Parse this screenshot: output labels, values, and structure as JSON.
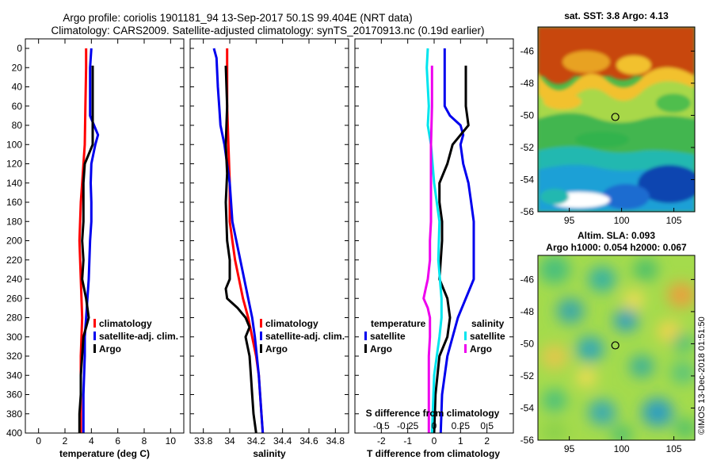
{
  "header": {
    "line1": "Argo profile: coriolis 1901181_94 13-Sep-2017 50.1S 99.404E (NRT data)",
    "line2": "Climatology: CARS2009. Satellite-adjusted climatology: synTS_20170913.nc (0.19d earlier)"
  },
  "colors": {
    "climatology": "#ff0000",
    "satellite_clim": "#0000ee",
    "argo": "#000000",
    "sat_T_diff": "#0000ee",
    "sat_S_diff": "#00e5ee",
    "argo_S_diff": "#ee00ee"
  },
  "chart_data": [
    {
      "type": "line",
      "name": "temperature",
      "xlabel": "temperature (deg C)",
      "xlim": [
        -1,
        11
      ],
      "ylim": [
        400,
        0
      ],
      "xticks": [
        "0",
        "2",
        "4",
        "6",
        "8",
        "10"
      ],
      "yticks": [
        "0",
        "20",
        "40",
        "60",
        "80",
        "100",
        "120",
        "140",
        "160",
        "180",
        "200",
        "220",
        "240",
        "260",
        "280",
        "300",
        "320",
        "340",
        "360",
        "380",
        "400"
      ],
      "legend": [
        "climatology",
        "satellite-adj. clim.",
        "Argo"
      ],
      "series": [
        {
          "name": "climatology",
          "depth": [
            0,
            20,
            60,
            100,
            140,
            160,
            200,
            240,
            280,
            320,
            360,
            400
          ],
          "values": [
            3.6,
            3.6,
            3.55,
            3.5,
            3.3,
            3.2,
            3.1,
            3.2,
            3.3,
            3.2,
            3.2,
            3.2
          ]
        },
        {
          "name": "satellite-adj. clim.",
          "depth": [
            0,
            20,
            40,
            60,
            70,
            80,
            90,
            100,
            120,
            140,
            160,
            180,
            200,
            240,
            280,
            300,
            320,
            360,
            400
          ],
          "values": [
            4.0,
            3.9,
            3.9,
            3.9,
            3.9,
            4.2,
            4.5,
            4.3,
            4.0,
            3.95,
            4.0,
            4.0,
            3.9,
            3.8,
            3.6,
            3.5,
            3.5,
            3.4,
            3.4
          ]
        },
        {
          "name": "Argo",
          "depth": [
            18,
            40,
            60,
            80,
            100,
            110,
            120,
            140,
            160,
            180,
            200,
            220,
            240,
            260,
            280,
            290,
            300,
            320,
            340,
            360,
            380,
            400
          ],
          "values": [
            4.1,
            4.1,
            4.1,
            4.1,
            4.1,
            3.8,
            3.5,
            3.4,
            3.4,
            3.4,
            3.3,
            3.4,
            3.3,
            3.6,
            3.8,
            3.6,
            3.4,
            3.3,
            3.2,
            3.2,
            3.1,
            3.1
          ]
        }
      ]
    },
    {
      "type": "line",
      "name": "salinity",
      "xlabel": "salinity",
      "xlim": [
        33.7,
        34.9
      ],
      "ylim": [
        400,
        0
      ],
      "xticks": [
        "33.8",
        "34",
        "34.2",
        "34.4",
        "34.6",
        "34.8"
      ],
      "legend": [
        "climatology",
        "satellite-adj. clim.",
        "Argo"
      ],
      "series": [
        {
          "name": "climatology",
          "depth": [
            0,
            20,
            60,
            100,
            140,
            180,
            200,
            220,
            240,
            260,
            280,
            300,
            320,
            340,
            360,
            380,
            400
          ],
          "values": [
            33.98,
            33.98,
            33.98,
            33.99,
            34.0,
            34.0,
            34.02,
            34.04,
            34.07,
            34.1,
            34.14,
            34.17,
            34.2,
            34.22,
            34.23,
            34.24,
            34.25
          ]
        },
        {
          "name": "satellite-adj. clim.",
          "depth": [
            0,
            10,
            40,
            60,
            80,
            100,
            140,
            180,
            220,
            260,
            280,
            300,
            340,
            380,
            400
          ],
          "values": [
            33.88,
            33.9,
            33.91,
            33.92,
            33.93,
            33.96,
            34.0,
            34.02,
            34.08,
            34.14,
            34.17,
            34.19,
            34.22,
            34.24,
            34.25
          ]
        },
        {
          "name": "Argo",
          "depth": [
            18,
            60,
            100,
            130,
            160,
            200,
            220,
            240,
            250,
            260,
            270,
            280,
            290,
            300,
            320,
            340,
            360,
            380,
            400
          ],
          "values": [
            33.97,
            33.98,
            33.97,
            33.98,
            33.97,
            33.98,
            34.0,
            34.0,
            33.97,
            33.98,
            34.06,
            34.12,
            34.15,
            34.12,
            34.15,
            34.16,
            34.17,
            34.18,
            34.2
          ]
        }
      ]
    },
    {
      "type": "line",
      "name": "differences",
      "xlabel": "T difference from climatology",
      "top_xlabel": "S difference from climatology",
      "xlim": [
        -3,
        3
      ],
      "ylim": [
        400,
        0
      ],
      "xticks": [
        "-2",
        "-1",
        "0",
        "1",
        "2"
      ],
      "s_xticks": [
        "-0.5",
        "-0.25",
        "0",
        "0.25",
        "0.5"
      ],
      "legend_left_title": "temperature",
      "legend_left": [
        "satellite",
        "Argo"
      ],
      "legend_right_title": "salinity",
      "legend_right": [
        "satellite",
        "Argo"
      ],
      "series": [
        {
          "name": "satellite T diff",
          "axis": "T",
          "depth": [
            0,
            20,
            60,
            70,
            80,
            90,
            100,
            120,
            140,
            160,
            180,
            200,
            240,
            280,
            320,
            360,
            400
          ],
          "values": [
            0.4,
            0.4,
            0.4,
            0.6,
            1.0,
            1.1,
            1.0,
            1.1,
            1.3,
            1.4,
            1.5,
            1.5,
            1.5,
            0.9,
            0.5,
            0.3,
            0.25
          ]
        },
        {
          "name": "Argo T diff",
          "axis": "T",
          "depth": [
            18,
            40,
            60,
            80,
            100,
            120,
            140,
            160,
            180,
            200,
            240,
            260,
            280,
            300,
            320,
            360,
            400
          ],
          "values": [
            1.2,
            1.2,
            1.2,
            1.3,
            0.7,
            0.5,
            0.2,
            0.2,
            0.3,
            0.3,
            0.2,
            0.5,
            0.6,
            0.5,
            0.2,
            0.05,
            0.0
          ]
        },
        {
          "name": "satellite S diff",
          "axis": "S",
          "depth": [
            0,
            20,
            40,
            60,
            80,
            100,
            140,
            180,
            220,
            260,
            280,
            300,
            340,
            400
          ],
          "values": [
            -0.06,
            -0.07,
            -0.06,
            -0.05,
            -0.06,
            -0.03,
            0.0,
            0.05,
            0.04,
            0.07,
            0.07,
            0.05,
            0.0,
            -0.02
          ]
        },
        {
          "name": "Argo S diff",
          "axis": "S",
          "depth": [
            18,
            60,
            100,
            140,
            180,
            200,
            220,
            240,
            250,
            260,
            270,
            280,
            300,
            320,
            340,
            360,
            380,
            400
          ],
          "values": [
            -0.02,
            -0.02,
            -0.03,
            -0.03,
            -0.03,
            -0.04,
            -0.04,
            -0.06,
            -0.08,
            -0.1,
            -0.06,
            -0.04,
            -0.04,
            -0.05,
            -0.05,
            -0.05,
            -0.05,
            -0.05
          ]
        }
      ]
    },
    {
      "type": "heatmap",
      "name": "sst_map",
      "title": "sat. SST: 3.8 Argo: 4.13",
      "xlim": [
        92,
        107
      ],
      "ylim": [
        -56,
        -44.5
      ],
      "xticks": [
        "95",
        "100",
        "105"
      ],
      "yticks": [
        "-46",
        "-48",
        "-50",
        "-52",
        "-54",
        "-56"
      ],
      "marker": {
        "lon": 99.4,
        "lat": -50.1
      }
    },
    {
      "type": "heatmap",
      "name": "sla_map",
      "title": "Altim. SLA: 0.093",
      "subtitle": "Argo h1000: 0.054 h2000: 0.067",
      "xlim": [
        92,
        107
      ],
      "ylim": [
        -56,
        -44.5
      ],
      "xticks": [
        "95",
        "100",
        "105"
      ],
      "yticks": [
        "-46",
        "-48",
        "-50",
        "-52",
        "-54",
        "-56"
      ],
      "marker": {
        "lon": 99.4,
        "lat": -50.1
      }
    }
  ],
  "footer": {
    "stamp": "©IMOS 13-Dec-2018 01:51:50"
  }
}
